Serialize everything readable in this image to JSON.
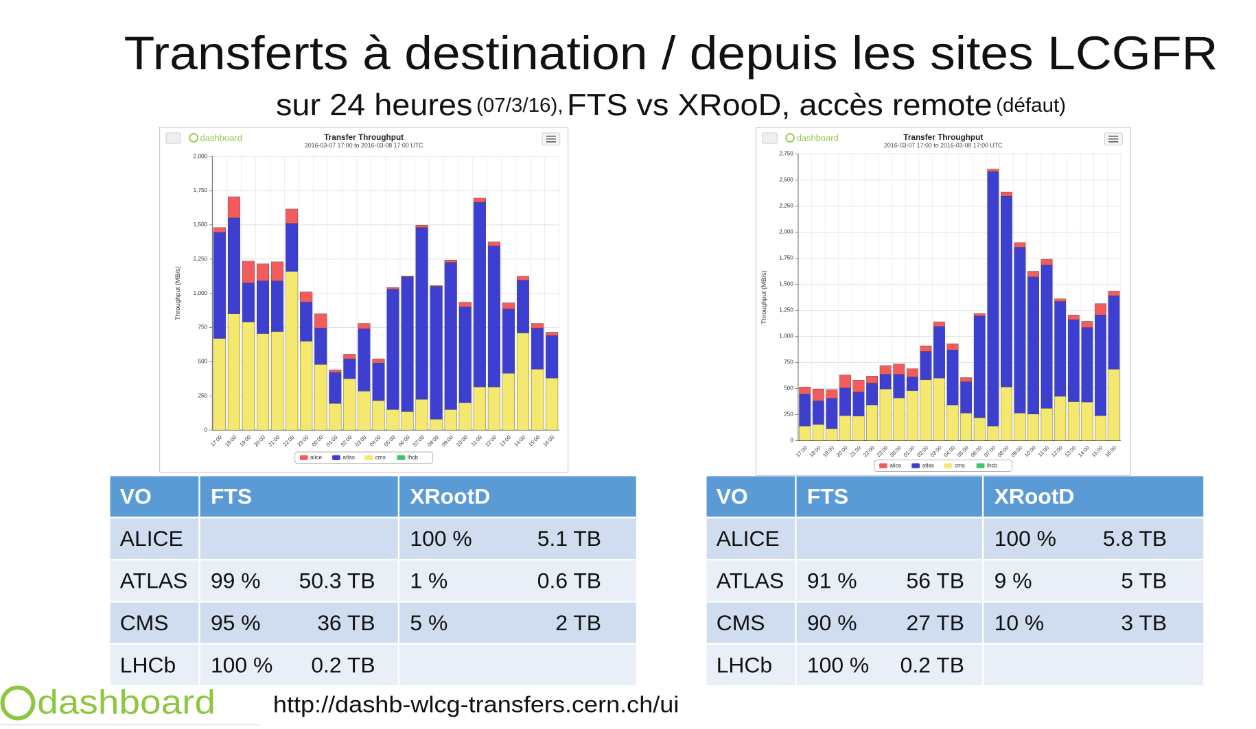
{
  "header": {
    "title": "Transferts à destination / depuis les sites LCGFR",
    "subtitle": [
      "sur 24 heures",
      "(07/3/16),",
      "FTS vs XRooD, accès remote",
      "(défaut)"
    ]
  },
  "chart_data": [
    {
      "type": "bar",
      "stacked": true,
      "logo": "dashboard",
      "title": "Transfer Throughput",
      "subtitle": "2016-03-07 17:00 to 2016-03-08 17:00 UTC",
      "y_label": "Throughput (MB/s)",
      "categories": [
        "17:00",
        "18:00",
        "19:00",
        "20:00",
        "21:00",
        "22:00",
        "23:00",
        "00:00",
        "01:00",
        "02:00",
        "03:00",
        "04:00",
        "05:00",
        "06:00",
        "07:00",
        "08:00",
        "09:00",
        "10:00",
        "11:00",
        "12:00",
        "13:00",
        "14:00",
        "15:00",
        "16:00"
      ],
      "series": [
        {
          "name": "alice",
          "color": "#f25c5c",
          "values": [
            35,
            155,
            160,
            125,
            140,
            105,
            75,
            105,
            20,
            35,
            40,
            30,
            12,
            6,
            18,
            6,
            18,
            35,
            30,
            30,
            45,
            30,
            35,
            25
          ]
        },
        {
          "name": "atlas",
          "color": "#3c3fd0",
          "values": [
            775,
            700,
            285,
            385,
            370,
            350,
            285,
            265,
            225,
            145,
            455,
            275,
            880,
            985,
            1255,
            970,
            1075,
            700,
            1350,
            1030,
            470,
            385,
            300,
            310
          ]
        },
        {
          "name": "cms",
          "color": "#f5e86e",
          "values": [
            670,
            850,
            790,
            705,
            720,
            1160,
            650,
            480,
            195,
            375,
            285,
            215,
            150,
            135,
            225,
            80,
            150,
            200,
            315,
            315,
            415,
            710,
            445,
            380
          ]
        },
        {
          "name": "lhcb",
          "color": "#3ec46a",
          "values": [
            0,
            0,
            0,
            0,
            0,
            0,
            0,
            0,
            0,
            0,
            0,
            0,
            0,
            0,
            0,
            0,
            0,
            0,
            0,
            0,
            0,
            0,
            0,
            0
          ]
        }
      ],
      "ylim": [
        0,
        2000
      ],
      "yticks": [
        0,
        250,
        500,
        750,
        {
          "value": 1000,
          "label": "1,000"
        },
        {
          "value": 1250,
          "label": "1,250"
        },
        {
          "value": 1500,
          "label": "1,500"
        },
        {
          "value": 1750,
          "label": "1,750"
        },
        {
          "value": 2000,
          "label": "2,000"
        }
      ],
      "grid": true,
      "legend": "bottom"
    },
    {
      "type": "bar",
      "stacked": true,
      "logo": "dashboard",
      "title": "Transfer Throughput",
      "subtitle": "2016-03-07 17:00 to 2016-03-08 17:00 UTC",
      "y_label": "Throughput (MB/s)",
      "categories": [
        "17:00",
        "18:00",
        "19:00",
        "20:00",
        "21:00",
        "22:00",
        "23:00",
        "00:00",
        "01:00",
        "02:00",
        "03:00",
        "04:00",
        "05:00",
        "06:00",
        "07:00",
        "08:00",
        "09:00",
        "10:00",
        "11:00",
        "12:00",
        "13:00",
        "14:00",
        "15:00",
        "16:00"
      ],
      "series": [
        {
          "name": "alice",
          "color": "#f25c5c",
          "values": [
            70,
            115,
            85,
            125,
            115,
            70,
            85,
            100,
            80,
            55,
            45,
            60,
            40,
            25,
            25,
            40,
            45,
            55,
            55,
            25,
            45,
            60,
            110,
            45
          ]
        },
        {
          "name": "atlas",
          "color": "#3c3fd0",
          "values": [
            305,
            225,
            290,
            265,
            230,
            210,
            140,
            225,
            130,
            270,
            495,
            530,
            300,
            975,
            2440,
            1830,
            1590,
            1315,
            1375,
            910,
            785,
            715,
            965,
            705
          ]
        },
        {
          "name": "cms",
          "color": "#f5e86e",
          "values": [
            140,
            155,
            115,
            240,
            235,
            340,
            495,
            410,
            480,
            585,
            600,
            340,
            265,
            220,
            140,
            515,
            265,
            255,
            310,
            425,
            375,
            370,
            240,
            685
          ]
        },
        {
          "name": "lhcb",
          "color": "#3ec46a",
          "values": [
            0,
            0,
            0,
            0,
            0,
            0,
            0,
            0,
            0,
            0,
            0,
            0,
            0,
            0,
            0,
            0,
            0,
            0,
            0,
            0,
            0,
            0,
            0,
            0
          ]
        }
      ],
      "ylim": [
        0,
        2750
      ],
      "yticks": [
        0,
        250,
        500,
        750,
        {
          "value": 1000,
          "label": "1,000"
        },
        {
          "value": 1250,
          "label": "1,250"
        },
        {
          "value": 1500,
          "label": "1,500"
        },
        {
          "value": 1750,
          "label": "1,750"
        },
        {
          "value": 2000,
          "label": "2,000"
        },
        {
          "value": 2250,
          "label": "2,250"
        },
        {
          "value": 2500,
          "label": "2,500"
        },
        {
          "value": 2750,
          "label": "2,750"
        }
      ],
      "grid": true,
      "legend": "bottom"
    }
  ],
  "tables": [
    {
      "header": [
        "VO",
        "FTS",
        "XRootD"
      ],
      "rows": [
        [
          "ALICE",
          null,
          null,
          "100 %",
          "5.1 TB"
        ],
        [
          "ATLAS",
          "99 %",
          "50.3 TB",
          "1 %",
          "0.6 TB"
        ],
        [
          "CMS",
          "95 %",
          "36 TB",
          "5 %",
          "2 TB"
        ],
        [
          "LHCb",
          "100 %",
          "0.2 TB",
          null,
          null
        ]
      ]
    },
    {
      "header": [
        "VO",
        "FTS",
        "XRootD"
      ],
      "rows": [
        [
          "ALICE",
          null,
          null,
          "100 %",
          "5.8 TB"
        ],
        [
          "ATLAS",
          "91 %",
          "56 TB",
          "9 %",
          "5 TB"
        ],
        [
          "CMS",
          "90 %",
          "27 TB",
          "10 %",
          "3 TB"
        ],
        [
          "LHCb",
          "100 %",
          "0.2 TB",
          null,
          null
        ]
      ]
    }
  ],
  "footer": {
    "logo": "dashboard",
    "url": "http://dashb-wlcg-transfers.cern.ch/ui"
  }
}
